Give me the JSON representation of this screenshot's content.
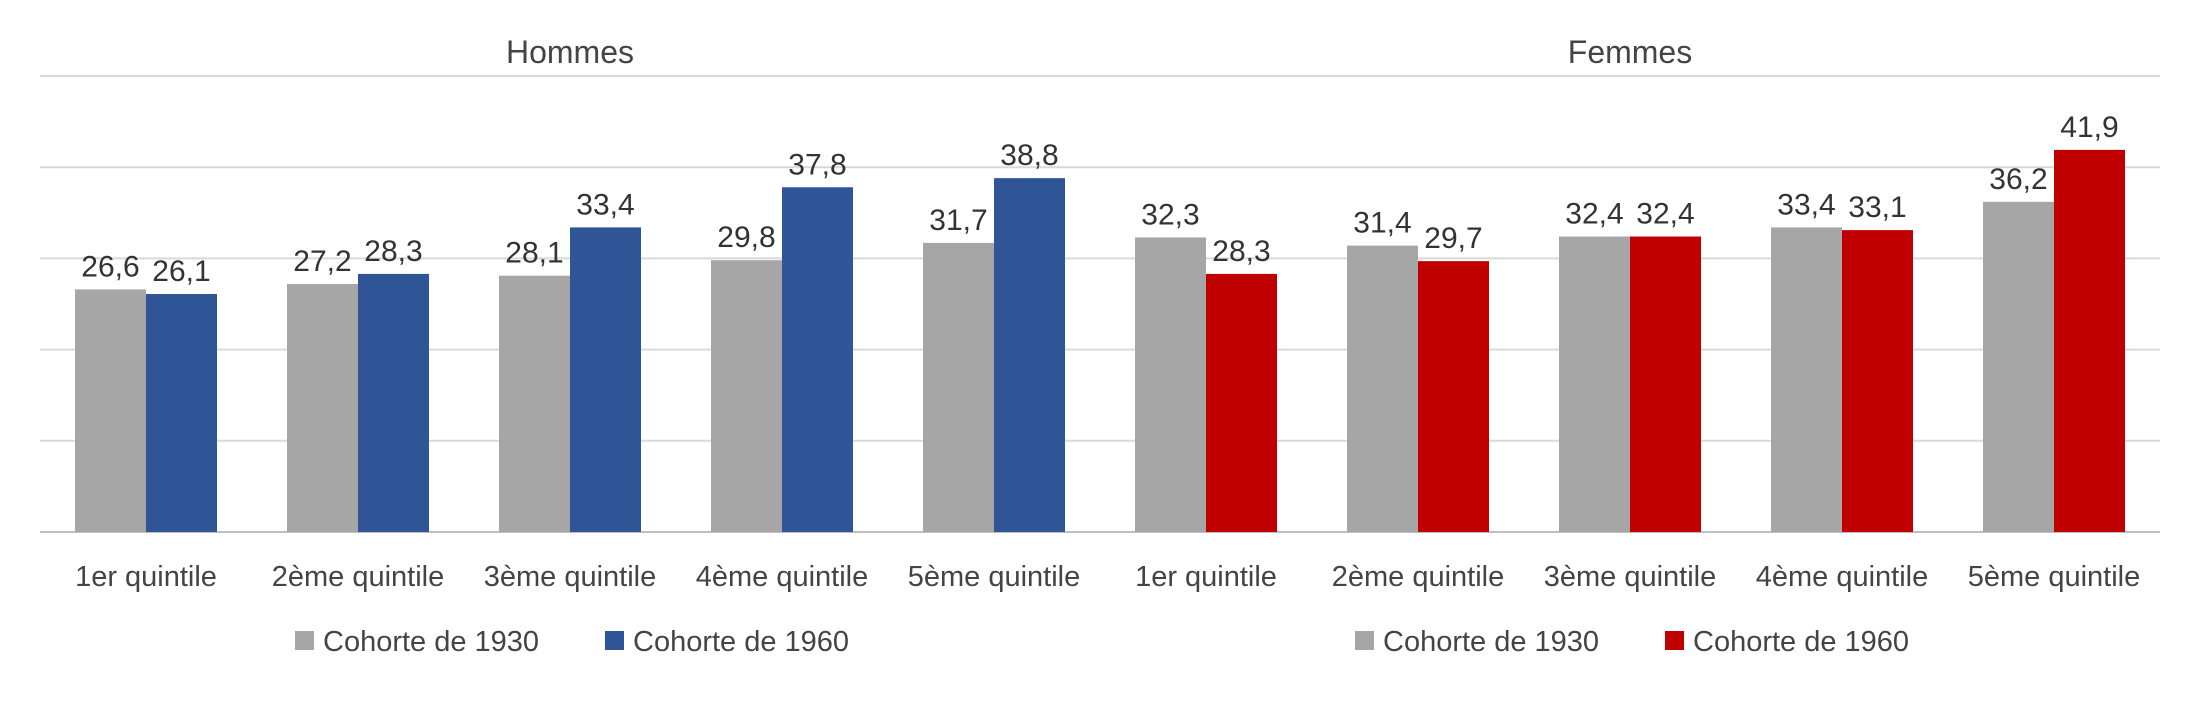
{
  "chart_data": {
    "type": "bar",
    "panels": [
      {
        "title": "Hommes",
        "categories": [
          "1er quintile",
          "2ème quintile",
          "3ème quintile",
          "4ème quintile",
          "5ème quintile"
        ],
        "series": [
          {
            "name": "Cohorte de 1930",
            "color": "#a6a6a6",
            "values": [
              26.6,
              27.2,
              28.1,
              29.8,
              31.7
            ],
            "labels": [
              "26,6",
              "27,2",
              "28,1",
              "29,8",
              "31,7"
            ]
          },
          {
            "name": "Cohorte de 1960",
            "color": "#2f5597",
            "values": [
              26.1,
              28.3,
              33.4,
              37.8,
              38.8
            ],
            "labels": [
              "26,1",
              "28,3",
              "33,4",
              "37,8",
              "38,8"
            ]
          }
        ]
      },
      {
        "title": "Femmes",
        "categories": [
          "1er quintile",
          "2ème quintile",
          "3ème quintile",
          "4ème quintile",
          "5ème quintile"
        ],
        "series": [
          {
            "name": "Cohorte de 1930",
            "color": "#a6a6a6",
            "values": [
              32.3,
              31.4,
              32.4,
              33.4,
              36.2
            ],
            "labels": [
              "32,3",
              "31,4",
              "32,4",
              "33,4",
              "36,2"
            ]
          },
          {
            "name": "Cohorte de 1960",
            "color": "#c00000",
            "values": [
              28.3,
              29.7,
              32.4,
              33.1,
              41.9
            ],
            "labels": [
              "28,3",
              "29,7",
              "32,4",
              "33,1",
              "41,9"
            ]
          }
        ]
      }
    ],
    "ylim": [
      0,
      50
    ],
    "grid": true,
    "legend_position": "bottom",
    "xlabel": "",
    "ylabel": ""
  }
}
